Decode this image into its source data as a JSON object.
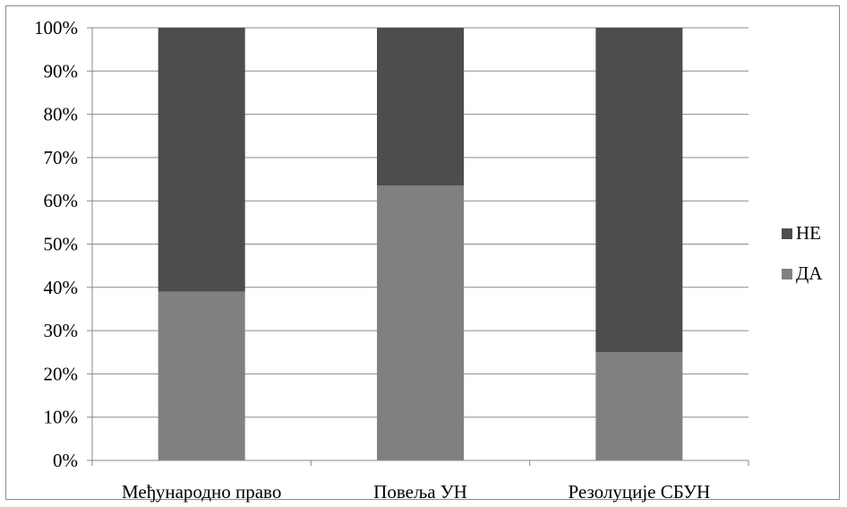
{
  "chart_data": {
    "type": "bar",
    "stacked": true,
    "percent": true,
    "categories": [
      "Међународно право",
      "Повеља УН",
      "Резолуције СБУН"
    ],
    "series": [
      {
        "name": "ДА",
        "values": [
          39,
          63.5,
          25
        ],
        "color": "#808080"
      },
      {
        "name": "НЕ",
        "values": [
          61,
          36.5,
          75
        ],
        "color": "#4d4d4d"
      }
    ],
    "y_ticks": [
      "0%",
      "10%",
      "20%",
      "30%",
      "40%",
      "50%",
      "60%",
      "70%",
      "80%",
      "90%",
      "100%"
    ],
    "ylim": [
      0,
      100
    ],
    "grid": true,
    "legend_position": "right"
  }
}
